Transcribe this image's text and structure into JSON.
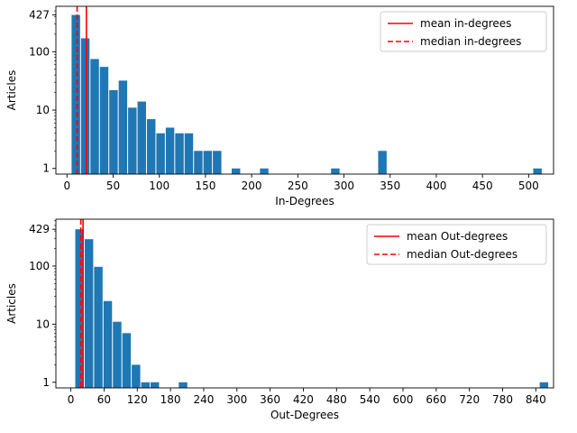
{
  "colors": {
    "bar": "#1f77b4",
    "mean_line": "#ff0000",
    "median_line": "#ff0000",
    "axis": "#000000",
    "legend_border": "#cccccc"
  },
  "chart_data": [
    {
      "type": "bar",
      "subtype": "histogram",
      "xlabel": "In-Degrees",
      "ylabel": "Articles",
      "yscale": "log",
      "xlim": [
        -12,
        527
      ],
      "ylim": [
        0.8,
        600
      ],
      "xticks": [
        0,
        50,
        100,
        150,
        200,
        250,
        300,
        350,
        400,
        450,
        500
      ],
      "yticks": [
        1,
        10,
        100,
        427
      ],
      "ytick_labels": [
        "1",
        "10",
        "100",
        "427"
      ],
      "bin_width": 10.2,
      "bins": [
        {
          "x": 5,
          "count": 427
        },
        {
          "x": 15.2,
          "count": 170
        },
        {
          "x": 25.4,
          "count": 75
        },
        {
          "x": 35.6,
          "count": 55
        },
        {
          "x": 45.8,
          "count": 22
        },
        {
          "x": 56.0,
          "count": 32
        },
        {
          "x": 66.2,
          "count": 11
        },
        {
          "x": 76.4,
          "count": 14
        },
        {
          "x": 86.6,
          "count": 7
        },
        {
          "x": 96.8,
          "count": 4
        },
        {
          "x": 107.0,
          "count": 5
        },
        {
          "x": 117.2,
          "count": 4
        },
        {
          "x": 127.4,
          "count": 4
        },
        {
          "x": 137.6,
          "count": 2
        },
        {
          "x": 147.8,
          "count": 2
        },
        {
          "x": 158.0,
          "count": 2
        },
        {
          "x": 178.4,
          "count": 1
        },
        {
          "x": 209.0,
          "count": 1
        },
        {
          "x": 286.0,
          "count": 1
        },
        {
          "x": 337.0,
          "count": 2
        },
        {
          "x": 505.0,
          "count": 1
        }
      ],
      "mean": 21,
      "median": 11,
      "legend": {
        "position": "upper right",
        "entries": [
          {
            "label": "mean in-degrees",
            "style": "solid"
          },
          {
            "label": "median in-degrees",
            "style": "dashed"
          }
        ]
      }
    },
    {
      "type": "bar",
      "subtype": "histogram",
      "xlabel": "Out-Degrees",
      "ylabel": "Articles",
      "yscale": "log",
      "xlim": [
        -27,
        872
      ],
      "ylim": [
        0.8,
        640
      ],
      "xticks": [
        0,
        60,
        120,
        180,
        240,
        300,
        360,
        420,
        480,
        540,
        600,
        660,
        720,
        780,
        840
      ],
      "yticks": [
        1,
        10,
        100,
        429
      ],
      "ytick_labels": [
        "1",
        "10",
        "100",
        "429"
      ],
      "bin_width": 17,
      "bins": [
        {
          "x": 8,
          "count": 429
        },
        {
          "x": 25,
          "count": 290
        },
        {
          "x": 42,
          "count": 97
        },
        {
          "x": 59,
          "count": 25
        },
        {
          "x": 76,
          "count": 11
        },
        {
          "x": 93,
          "count": 7
        },
        {
          "x": 110,
          "count": 2
        },
        {
          "x": 127,
          "count": 1
        },
        {
          "x": 144,
          "count": 1
        },
        {
          "x": 195,
          "count": 1
        },
        {
          "x": 847,
          "count": 1
        }
      ],
      "mean": 22,
      "median": 18,
      "legend": {
        "position": "upper right",
        "entries": [
          {
            "label": "mean Out-degrees",
            "style": "solid"
          },
          {
            "label": "median Out-degrees",
            "style": "dashed"
          }
        ]
      }
    }
  ]
}
